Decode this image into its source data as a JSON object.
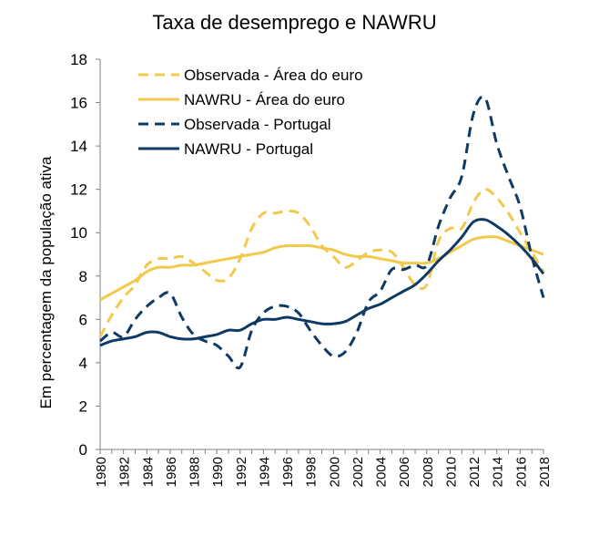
{
  "chart_data": {
    "type": "line",
    "title": "Taxa de desemprego e NAWRU",
    "xlabel": "",
    "ylabel": "Em percentagem da população ativa",
    "ylim": [
      0,
      18
    ],
    "yticks": [
      0,
      2,
      4,
      6,
      8,
      10,
      12,
      14,
      16,
      18
    ],
    "xlim": [
      1980,
      2018
    ],
    "xticks": [
      1980,
      1982,
      1984,
      1986,
      1988,
      1990,
      1992,
      1994,
      1996,
      1998,
      2000,
      2002,
      2004,
      2006,
      2008,
      2010,
      2012,
      2014,
      2016,
      2018
    ],
    "grid": false,
    "legend_position": "top-left",
    "x": [
      1980,
      1981,
      1982,
      1983,
      1984,
      1985,
      1986,
      1987,
      1988,
      1989,
      1990,
      1991,
      1992,
      1993,
      1994,
      1995,
      1996,
      1997,
      1998,
      1999,
      2000,
      2001,
      2002,
      2003,
      2004,
      2005,
      2006,
      2007,
      2008,
      2009,
      2010,
      2011,
      2012,
      2013,
      2014,
      2015,
      2016,
      2017,
      2018
    ],
    "series": [
      {
        "name": "Observada - Área do euro",
        "style": "dashed",
        "color": "#F2C94C",
        "values": [
          5.2,
          6.2,
          7.0,
          7.6,
          8.5,
          8.8,
          8.8,
          8.9,
          8.6,
          8.2,
          7.8,
          7.9,
          8.8,
          10.2,
          10.9,
          10.9,
          11.0,
          10.9,
          10.3,
          9.4,
          8.9,
          8.4,
          8.7,
          9.1,
          9.2,
          9.1,
          8.4,
          7.6,
          7.6,
          9.6,
          10.2,
          10.2,
          11.4,
          12.0,
          11.6,
          10.9,
          10.0,
          9.1,
          8.2
        ]
      },
      {
        "name": "NAWRU - Área do euro",
        "style": "solid",
        "color": "#F2C94C",
        "values": [
          6.9,
          7.2,
          7.5,
          7.8,
          8.2,
          8.4,
          8.4,
          8.5,
          8.5,
          8.6,
          8.7,
          8.8,
          8.9,
          9.0,
          9.1,
          9.3,
          9.4,
          9.4,
          9.4,
          9.3,
          9.2,
          9.0,
          8.9,
          8.9,
          8.8,
          8.7,
          8.6,
          8.6,
          8.6,
          8.8,
          9.1,
          9.4,
          9.7,
          9.8,
          9.8,
          9.6,
          9.4,
          9.2,
          9.0
        ]
      },
      {
        "name": "Observada - Portugal",
        "style": "dashed",
        "color": "#0E3A63",
        "values": [
          5.0,
          5.4,
          5.2,
          6.0,
          6.6,
          7.0,
          7.2,
          6.1,
          5.3,
          5.0,
          4.8,
          4.3,
          3.8,
          5.5,
          6.3,
          6.6,
          6.6,
          6.3,
          5.5,
          4.8,
          4.3,
          4.5,
          5.4,
          6.8,
          7.3,
          8.3,
          8.3,
          8.5,
          8.5,
          10.3,
          11.6,
          12.6,
          15.5,
          16.2,
          14.1,
          12.6,
          11.2,
          8.9,
          7.0
        ]
      },
      {
        "name": "NAWRU - Portugal",
        "style": "solid",
        "color": "#0E3A63",
        "values": [
          4.8,
          5.0,
          5.1,
          5.2,
          5.4,
          5.4,
          5.2,
          5.1,
          5.1,
          5.2,
          5.3,
          5.5,
          5.5,
          5.8,
          6.0,
          6.0,
          6.1,
          6.0,
          5.9,
          5.8,
          5.8,
          5.9,
          6.2,
          6.5,
          6.7,
          7.0,
          7.3,
          7.6,
          8.1,
          8.7,
          9.2,
          9.8,
          10.5,
          10.6,
          10.3,
          9.9,
          9.4,
          8.8,
          8.1
        ]
      }
    ]
  }
}
